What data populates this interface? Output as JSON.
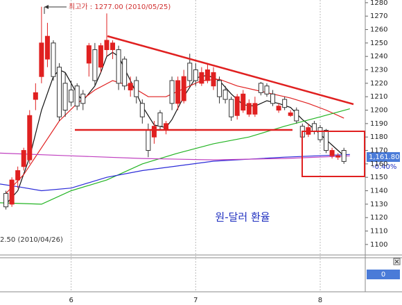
{
  "chart_data": {
    "type": "candlestick",
    "title": "원-달러 환율",
    "annotations": {
      "high": "최고가 : 1277.00 (2010/05/25)",
      "low": "2.50 (2010/04/26)",
      "last": "1,161.80",
      "change": "-0.40%",
      "lower_panel": "0"
    },
    "xlim": [
      -1,
      60.6
    ],
    "xticks": [
      {
        "value": 11,
        "label": "6"
      },
      {
        "value": 32,
        "label": "7"
      },
      {
        "value": 53,
        "label": "8"
      }
    ],
    "ylim": [
      1093,
      1282
    ],
    "yticks": [
      1100,
      1110,
      1120,
      1130,
      1140,
      1150,
      1160,
      1170,
      1180,
      1190,
      1200,
      1210,
      1220,
      1230,
      1240,
      1250,
      1260,
      1270,
      1280
    ],
    "up_color": "#e02020",
    "down_color": "#ffffff",
    "open": [
      1138,
      1130,
      1148,
      1158,
      1163,
      1208,
      1225,
      1238,
      1250,
      1232,
      1220,
      1215,
      1218,
      1212,
      1235,
      1245,
      1232,
      1245,
      1245,
      1245,
      1238,
      1215,
      1222,
      1205,
      1185,
      1180,
      1198,
      1185,
      1222,
      1205,
      1207,
      1235,
      1230,
      1220,
      1222,
      1218,
      1222,
      1215,
      1208,
      1196,
      1200,
      1197,
      1197,
      1220,
      1218,
      1212,
      1200,
      1208,
      1196,
      1200,
      1188,
      1182,
      1190,
      1187,
      1185,
      1166,
      1165,
      1170
    ],
    "high": [
      1140,
      1150,
      1158,
      1172,
      1200,
      1220,
      1277,
      1265,
      1252,
      1235,
      1228,
      1222,
      1220,
      1215,
      1250,
      1250,
      1250,
      1272,
      1252,
      1248,
      1240,
      1225,
      1225,
      1208,
      1190,
      1192,
      1200,
      1192,
      1225,
      1225,
      1230,
      1242,
      1235,
      1232,
      1235,
      1232,
      1225,
      1218,
      1210,
      1212,
      1215,
      1208,
      1210,
      1221,
      1220,
      1215,
      1205,
      1210,
      1200,
      1202,
      1190,
      1190,
      1192,
      1189,
      1186,
      1172,
      1168,
      1172
    ],
    "low": [
      1126,
      1128,
      1142,
      1155,
      1160,
      1200,
      1220,
      1232,
      1222,
      1192,
      1195,
      1203,
      1200,
      1200,
      1225,
      1218,
      1228,
      1240,
      1238,
      1215,
      1215,
      1210,
      1205,
      1190,
      1165,
      1175,
      1185,
      1182,
      1200,
      1200,
      1205,
      1218,
      1218,
      1218,
      1220,
      1215,
      1205,
      1205,
      1192,
      1193,
      1198,
      1195,
      1195,
      1211,
      1210,
      1203,
      1198,
      1200,
      1195,
      1190,
      1178,
      1180,
      1182,
      1176,
      1168,
      1164,
      1163,
      1160
    ],
    "close": [
      1128,
      1148,
      1155,
      1170,
      1196,
      1213,
      1250,
      1255,
      1225,
      1195,
      1200,
      1206,
      1203,
      1205,
      1248,
      1222,
      1248,
      1252,
      1250,
      1220,
      1218,
      1220,
      1210,
      1195,
      1170,
      1188,
      1188,
      1190,
      1205,
      1222,
      1225,
      1222,
      1222,
      1228,
      1230,
      1228,
      1210,
      1208,
      1195,
      1210,
      1212,
      1205,
      1205,
      1213,
      1212,
      1205,
      1203,
      1202,
      1198,
      1192,
      1180,
      1187,
      1184,
      1178,
      1170,
      1170,
      1166,
      1161.8
    ],
    "series": [
      {
        "color": "#111111",
        "x": [
          0,
          2,
          4,
          6,
          8,
          9,
          10,
          11,
          12,
          13,
          15,
          16,
          17,
          18,
          19,
          21,
          23,
          25,
          27,
          28,
          30,
          32,
          34,
          36,
          38,
          40,
          42,
          44,
          46,
          48,
          50,
          52,
          54,
          56,
          57
        ],
        "values": [
          1130,
          1140,
          1165,
          1200,
          1225,
          1230,
          1228,
          1220,
          1212,
          1207,
          1218,
          1228,
          1240,
          1243,
          1240,
          1222,
          1203,
          1189,
          1187,
          1193,
          1210,
          1224,
          1226,
          1222,
          1212,
          1204,
          1203,
          1207,
          1205,
          1202,
          1193,
          1186,
          1178,
          1170,
          1166
        ]
      },
      {
        "color": "#e02020",
        "x": [
          0,
          3,
          6,
          9,
          12,
          15,
          18,
          21,
          24,
          27,
          30,
          33,
          36,
          39,
          42,
          45,
          48,
          51,
          54,
          57
        ],
        "values": [
          1138,
          1152,
          1172,
          1192,
          1205,
          1215,
          1222,
          1218,
          1210,
          1210,
          1216,
          1222,
          1223,
          1218,
          1215,
          1212,
          1209,
          1205,
          1200,
          1194
        ]
      },
      {
        "color": "#22b422",
        "x": [
          -1,
          6,
          11,
          17,
          23,
          29,
          35,
          41,
          47,
          53,
          58
        ],
        "values": [
          1131,
          1130,
          1140,
          1148,
          1160,
          1168,
          1175,
          1180,
          1188,
          1195,
          1201
        ]
      },
      {
        "color": "#2a2ad8",
        "x": [
          -1,
          2,
          6,
          11,
          17,
          23,
          35,
          47,
          58
        ],
        "values": [
          1145,
          1143,
          1140,
          1142,
          1150,
          1155,
          1162,
          1165,
          1167
        ]
      },
      {
        "color": "#c040c0",
        "x": [
          -1,
          11,
          23,
          35,
          47,
          58
        ],
        "values": [
          1168,
          1166,
          1164,
          1163,
          1164,
          1166
        ]
      }
    ]
  }
}
